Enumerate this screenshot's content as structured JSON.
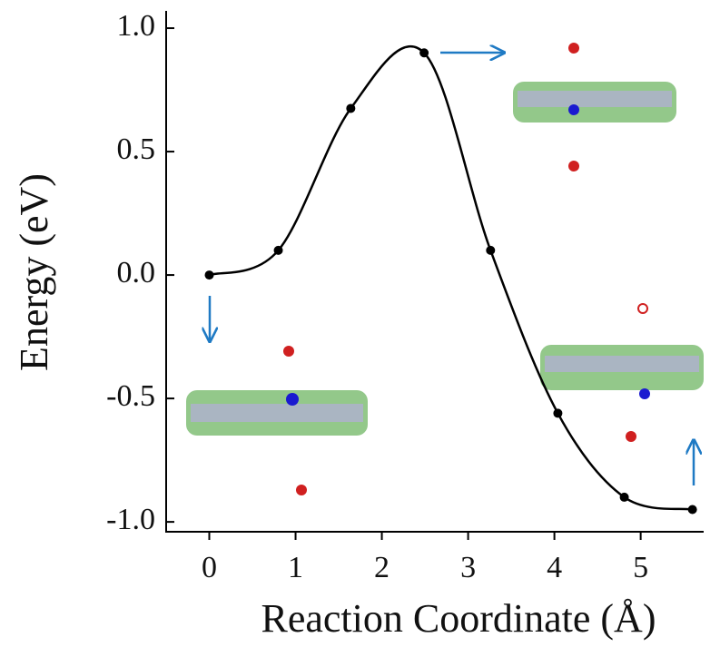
{
  "chart_data": {
    "type": "line",
    "x_label": "Reaction Coordinate (Å)",
    "y_label": "Energy (eV)",
    "x": [
      0,
      0.8,
      1.64,
      2.49,
      3.26,
      4.04,
      4.81,
      5.6
    ],
    "series": [
      {
        "color": "#000000",
        "values": [
          0,
          0.1,
          0.675,
          0.9,
          0.1,
          -0.56,
          -0.9,
          -0.95
        ]
      }
    ],
    "xlim": [
      -0.5,
      5.73
    ],
    "ylim": [
      -1.04,
      1.07
    ],
    "xticks": [
      0,
      1,
      2,
      3,
      4,
      5
    ],
    "yticks": [
      {
        "value": 1,
        "label": "1.0"
      },
      {
        "value": 0.5,
        "label": "0.5"
      },
      {
        "value": 0,
        "label": "0.0"
      },
      {
        "value": -0.5,
        "label": "-0.5"
      },
      {
        "value": -1,
        "label": "-1.0"
      }
    ],
    "markers": true
  }
}
